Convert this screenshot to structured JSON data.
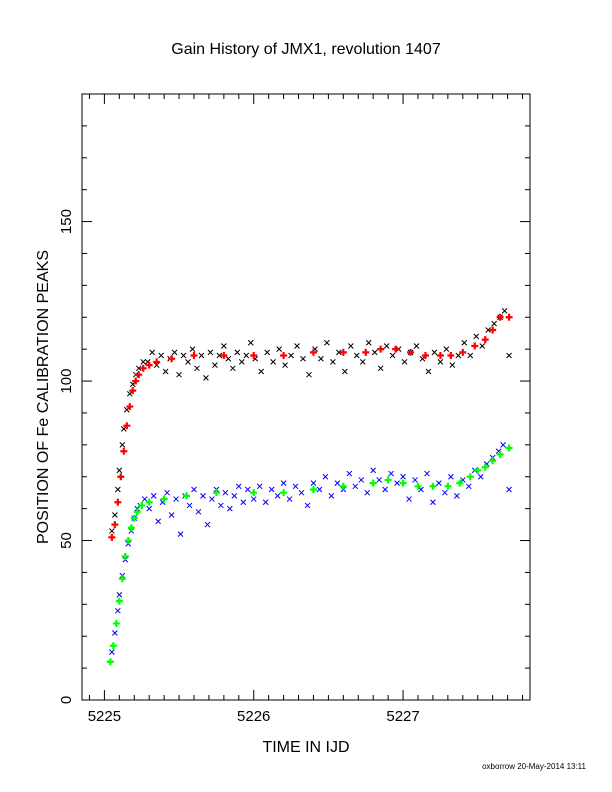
{
  "chart_data": {
    "type": "scatter",
    "title": "Gain History of JMX1, revolution 1407",
    "xlabel": "TIME IN IJD",
    "ylabel": "POSITION OF Fe CALIBRATION PEAKS",
    "xlim": [
      5224.85,
      5227.85
    ],
    "ylim": [
      0,
      190
    ],
    "x_ticks": [
      5225,
      5226,
      5227
    ],
    "y_ticks": [
      0,
      50,
      100,
      150
    ],
    "grid": false,
    "series": [
      {
        "kind": "scatter-x",
        "color": "#000000",
        "points": [
          [
            5225.05,
            53
          ],
          [
            5225.07,
            58
          ],
          [
            5225.09,
            66
          ],
          [
            5225.1,
            72
          ],
          [
            5225.12,
            80
          ],
          [
            5225.13,
            85
          ],
          [
            5225.15,
            91
          ],
          [
            5225.17,
            96
          ],
          [
            5225.19,
            99
          ],
          [
            5225.21,
            102
          ],
          [
            5225.23,
            104
          ],
          [
            5225.26,
            106
          ],
          [
            5225.29,
            106
          ],
          [
            5225.32,
            109
          ],
          [
            5225.35,
            105
          ],
          [
            5225.38,
            108
          ],
          [
            5225.41,
            103
          ],
          [
            5225.44,
            107
          ],
          [
            5225.47,
            109
          ],
          [
            5225.5,
            102
          ],
          [
            5225.53,
            108
          ],
          [
            5225.56,
            106
          ],
          [
            5225.59,
            110
          ],
          [
            5225.62,
            104
          ],
          [
            5225.65,
            108
          ],
          [
            5225.68,
            101
          ],
          [
            5225.71,
            109
          ],
          [
            5225.74,
            105
          ],
          [
            5225.77,
            108
          ],
          [
            5225.8,
            111
          ],
          [
            5225.83,
            107
          ],
          [
            5225.86,
            104
          ],
          [
            5225.89,
            109
          ],
          [
            5225.92,
            106
          ],
          [
            5225.95,
            108
          ],
          [
            5225.98,
            112
          ],
          [
            5226.01,
            107
          ],
          [
            5226.05,
            103
          ],
          [
            5226.09,
            109
          ],
          [
            5226.13,
            106
          ],
          [
            5226.17,
            110
          ],
          [
            5226.21,
            105
          ],
          [
            5226.25,
            108
          ],
          [
            5226.29,
            111
          ],
          [
            5226.33,
            107
          ],
          [
            5226.37,
            102
          ],
          [
            5226.41,
            110
          ],
          [
            5226.45,
            107
          ],
          [
            5226.49,
            112
          ],
          [
            5226.53,
            106
          ],
          [
            5226.57,
            109
          ],
          [
            5226.61,
            103
          ],
          [
            5226.65,
            111
          ],
          [
            5226.69,
            108
          ],
          [
            5226.73,
            106
          ],
          [
            5226.77,
            112
          ],
          [
            5226.81,
            109
          ],
          [
            5226.85,
            104
          ],
          [
            5226.89,
            111
          ],
          [
            5226.93,
            108
          ],
          [
            5226.97,
            110
          ],
          [
            5227.01,
            106
          ],
          [
            5227.05,
            109
          ],
          [
            5227.09,
            111
          ],
          [
            5227.13,
            107
          ],
          [
            5227.17,
            103
          ],
          [
            5227.21,
            109
          ],
          [
            5227.25,
            106
          ],
          [
            5227.29,
            110
          ],
          [
            5227.33,
            105
          ],
          [
            5227.37,
            108
          ],
          [
            5227.41,
            112
          ],
          [
            5227.45,
            108
          ],
          [
            5227.49,
            114
          ],
          [
            5227.53,
            111
          ],
          [
            5227.57,
            116
          ],
          [
            5227.61,
            118
          ],
          [
            5227.65,
            120
          ],
          [
            5227.68,
            122
          ],
          [
            5227.71,
            108
          ]
        ]
      },
      {
        "kind": "scatter-x",
        "color": "#0000ff",
        "points": [
          [
            5225.05,
            15
          ],
          [
            5225.07,
            21
          ],
          [
            5225.09,
            28
          ],
          [
            5225.1,
            33
          ],
          [
            5225.12,
            39
          ],
          [
            5225.14,
            44
          ],
          [
            5225.16,
            49
          ],
          [
            5225.18,
            53
          ],
          [
            5225.2,
            57
          ],
          [
            5225.22,
            60
          ],
          [
            5225.24,
            61
          ],
          [
            5225.27,
            63
          ],
          [
            5225.3,
            60
          ],
          [
            5225.33,
            64
          ],
          [
            5225.36,
            56
          ],
          [
            5225.39,
            62
          ],
          [
            5225.42,
            65
          ],
          [
            5225.45,
            58
          ],
          [
            5225.48,
            63
          ],
          [
            5225.51,
            52
          ],
          [
            5225.54,
            64
          ],
          [
            5225.57,
            61
          ],
          [
            5225.6,
            66
          ],
          [
            5225.63,
            59
          ],
          [
            5225.66,
            64
          ],
          [
            5225.69,
            55
          ],
          [
            5225.72,
            63
          ],
          [
            5225.75,
            66
          ],
          [
            5225.78,
            61
          ],
          [
            5225.81,
            65
          ],
          [
            5225.84,
            60
          ],
          [
            5225.87,
            64
          ],
          [
            5225.9,
            67
          ],
          [
            5225.93,
            62
          ],
          [
            5225.96,
            66
          ],
          [
            5226.0,
            63
          ],
          [
            5226.04,
            67
          ],
          [
            5226.08,
            62
          ],
          [
            5226.12,
            66
          ],
          [
            5226.16,
            64
          ],
          [
            5226.2,
            68
          ],
          [
            5226.24,
            63
          ],
          [
            5226.28,
            67
          ],
          [
            5226.32,
            65
          ],
          [
            5226.36,
            61
          ],
          [
            5226.4,
            68
          ],
          [
            5226.44,
            66
          ],
          [
            5226.48,
            70
          ],
          [
            5226.52,
            64
          ],
          [
            5226.56,
            68
          ],
          [
            5226.6,
            66
          ],
          [
            5226.64,
            71
          ],
          [
            5226.68,
            67
          ],
          [
            5226.72,
            69
          ],
          [
            5226.76,
            65
          ],
          [
            5226.8,
            72
          ],
          [
            5226.84,
            69
          ],
          [
            5226.88,
            66
          ],
          [
            5226.92,
            71
          ],
          [
            5226.96,
            68
          ],
          [
            5227.0,
            70
          ],
          [
            5227.04,
            63
          ],
          [
            5227.08,
            69
          ],
          [
            5227.12,
            66
          ],
          [
            5227.16,
            71
          ],
          [
            5227.2,
            62
          ],
          [
            5227.24,
            68
          ],
          [
            5227.28,
            65
          ],
          [
            5227.32,
            70
          ],
          [
            5227.36,
            64
          ],
          [
            5227.4,
            69
          ],
          [
            5227.44,
            67
          ],
          [
            5227.48,
            72
          ],
          [
            5227.52,
            70
          ],
          [
            5227.56,
            74
          ],
          [
            5227.6,
            76
          ],
          [
            5227.64,
            78
          ],
          [
            5227.67,
            80
          ],
          [
            5227.71,
            66
          ]
        ]
      },
      {
        "kind": "fit-plus",
        "color": "#ff0000",
        "points": [
          [
            5225.05,
            51
          ],
          [
            5225.07,
            55
          ],
          [
            5225.09,
            62
          ],
          [
            5225.11,
            70
          ],
          [
            5225.13,
            78
          ],
          [
            5225.15,
            86
          ],
          [
            5225.17,
            92
          ],
          [
            5225.19,
            97
          ],
          [
            5225.21,
            100
          ],
          [
            5225.23,
            102
          ],
          [
            5225.26,
            104
          ],
          [
            5225.3,
            105
          ],
          [
            5225.35,
            106
          ],
          [
            5225.45,
            107
          ],
          [
            5225.6,
            108
          ],
          [
            5225.8,
            108
          ],
          [
            5226.0,
            108
          ],
          [
            5226.2,
            108
          ],
          [
            5226.4,
            109
          ],
          [
            5226.6,
            109
          ],
          [
            5226.75,
            109
          ],
          [
            5226.85,
            110
          ],
          [
            5226.95,
            110
          ],
          [
            5227.05,
            109
          ],
          [
            5227.15,
            108
          ],
          [
            5227.25,
            108
          ],
          [
            5227.32,
            108
          ],
          [
            5227.4,
            109
          ],
          [
            5227.48,
            111
          ],
          [
            5227.55,
            113
          ],
          [
            5227.6,
            116
          ],
          [
            5227.65,
            120
          ],
          [
            5227.71,
            120
          ]
        ]
      },
      {
        "kind": "fit-plus",
        "color": "#00ff00",
        "points": [
          [
            5225.04,
            12
          ],
          [
            5225.06,
            17
          ],
          [
            5225.08,
            24
          ],
          [
            5225.1,
            31
          ],
          [
            5225.12,
            38
          ],
          [
            5225.14,
            45
          ],
          [
            5225.16,
            50
          ],
          [
            5225.18,
            54
          ],
          [
            5225.2,
            57
          ],
          [
            5225.22,
            59
          ],
          [
            5225.25,
            61
          ],
          [
            5225.3,
            62
          ],
          [
            5225.4,
            63
          ],
          [
            5225.55,
            64
          ],
          [
            5225.75,
            65
          ],
          [
            5226.0,
            65
          ],
          [
            5226.2,
            65
          ],
          [
            5226.4,
            66
          ],
          [
            5226.6,
            67
          ],
          [
            5226.8,
            68
          ],
          [
            5226.9,
            69
          ],
          [
            5227.0,
            68
          ],
          [
            5227.1,
            67
          ],
          [
            5227.2,
            67
          ],
          [
            5227.3,
            67
          ],
          [
            5227.38,
            68
          ],
          [
            5227.45,
            70
          ],
          [
            5227.5,
            72
          ],
          [
            5227.55,
            73
          ],
          [
            5227.6,
            75
          ],
          [
            5227.65,
            77
          ],
          [
            5227.71,
            79
          ]
        ]
      }
    ]
  },
  "footer": {
    "credit": "oxborrow 20-May-2014 13:11"
  }
}
